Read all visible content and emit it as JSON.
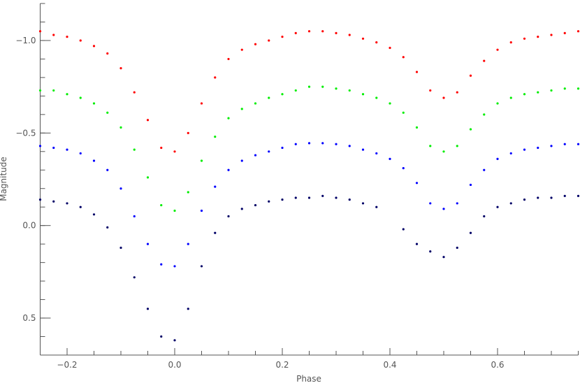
{
  "chart_data": {
    "type": "scatter",
    "title": "",
    "xlabel": "Phase",
    "ylabel": "Magnitude",
    "xlim": [
      -0.25,
      0.75
    ],
    "ylim": [
      0.7,
      -1.2
    ],
    "y_inverted": true,
    "grid": false,
    "x_ticks": [
      -0.2,
      0.0,
      0.2,
      0.4,
      0.6
    ],
    "x_tick_labels": [
      "-0.2",
      "0.0",
      "0.2",
      "0.4",
      "0.6"
    ],
    "y_ticks": [
      -1.0,
      -0.5,
      0.0,
      0.5
    ],
    "y_tick_labels": [
      "-1.0",
      "-0.5",
      "0.0",
      "0.5"
    ],
    "x": [
      -0.25,
      -0.225,
      -0.2,
      -0.175,
      -0.15,
      -0.125,
      -0.1,
      -0.075,
      -0.05,
      -0.025,
      0,
      0.025,
      0.05,
      0.075,
      0.1,
      0.125,
      0.15,
      0.175,
      0.2,
      0.225,
      0.25,
      0.275,
      0.3,
      0.325,
      0.35,
      0.375,
      0.4,
      0.425,
      0.45,
      0.475,
      0.5,
      0.525,
      0.55,
      0.575,
      0.6,
      0.625,
      0.65,
      0.675,
      0.7,
      0.725,
      0.75
    ],
    "series": [
      {
        "color": "#ff0000",
        "values": [
          -1.05,
          -1.03,
          -1.02,
          -1.0,
          -0.97,
          -0.93,
          -0.85,
          -0.72,
          -0.57,
          -0.42,
          -0.4,
          -0.5,
          -0.66,
          -0.8,
          -0.9,
          -0.95,
          -0.98,
          -1.0,
          -1.02,
          -1.04,
          -1.05,
          -1.05,
          -1.04,
          -1.03,
          -1.01,
          -0.99,
          -0.96,
          -0.91,
          -0.83,
          -0.73,
          -0.69,
          -0.72,
          -0.81,
          -0.89,
          -0.95,
          -0.99,
          -1.01,
          -1.02,
          -1.03,
          -1.04,
          -1.05
        ]
      },
      {
        "color": "#00ee00",
        "values": [
          -0.73,
          -0.73,
          -0.71,
          -0.69,
          -0.66,
          -0.61,
          -0.53,
          -0.41,
          -0.26,
          -0.11,
          -0.08,
          -0.18,
          -0.35,
          -0.48,
          -0.58,
          -0.63,
          -0.66,
          -0.69,
          -0.71,
          -0.73,
          -0.75,
          -0.75,
          -0.74,
          -0.73,
          -0.71,
          -0.69,
          -0.66,
          -0.61,
          -0.53,
          -0.43,
          -0.4,
          -0.43,
          -0.52,
          -0.6,
          -0.66,
          -0.69,
          -0.71,
          -0.72,
          -0.73,
          -0.74,
          -0.74
        ]
      },
      {
        "color": "#0000ff",
        "values": [
          -0.43,
          -0.42,
          -0.41,
          -0.39,
          -0.35,
          -0.3,
          -0.2,
          -0.05,
          0.1,
          0.21,
          0.22,
          0.1,
          -0.08,
          -0.21,
          -0.3,
          -0.35,
          -0.38,
          -0.4,
          -0.42,
          -0.44,
          -0.445,
          -0.445,
          -0.44,
          -0.43,
          -0.41,
          -0.39,
          -0.36,
          -0.31,
          -0.23,
          -0.12,
          -0.09,
          -0.12,
          -0.22,
          -0.3,
          -0.36,
          -0.39,
          -0.41,
          -0.42,
          -0.43,
          -0.44,
          -0.44
        ]
      },
      {
        "color": "#000066",
        "values": [
          -0.14,
          -0.13,
          -0.12,
          -0.1,
          -0.06,
          0.01,
          0.12,
          0.28,
          0.45,
          0.6,
          0.62,
          0.45,
          0.22,
          0.04,
          -0.05,
          -0.09,
          -0.11,
          -0.13,
          -0.14,
          -0.15,
          -0.15,
          -0.16,
          -0.15,
          -0.14,
          -0.12,
          -0.1,
          null,
          0.02,
          0.1,
          0.14,
          0.17,
          0.12,
          0.04,
          -0.05,
          -0.1,
          -0.12,
          -0.14,
          -0.15,
          -0.15,
          -0.16,
          -0.16
        ]
      }
    ]
  }
}
